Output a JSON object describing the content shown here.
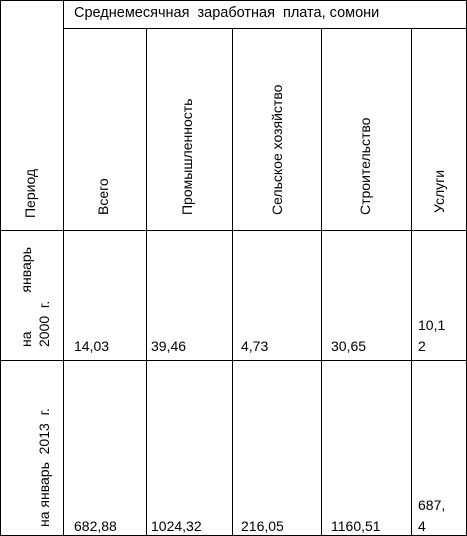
{
  "table": {
    "header": {
      "period": "Период",
      "group_title": "Среднемесячная  заработная  плата, сомони",
      "columns": [
        "Всего",
        "Промышленность",
        "Сельское хозяйство",
        "Строительство",
        "Услуги"
      ]
    },
    "rows": [
      {
        "period_line1": "на          январь",
        "period_line2": "2000  г.",
        "values": [
          "14,03",
          "39,46",
          "4,73",
          "30,65"
        ],
        "last_line1": "10,1",
        "last_line2": "2"
      },
      {
        "period_line1": "на январь  2013  г.",
        "values": [
          "682,88",
          "1024,32",
          "216,05",
          "1160,51"
        ],
        "last_line1": "687,",
        "last_line2": "4"
      }
    ]
  }
}
